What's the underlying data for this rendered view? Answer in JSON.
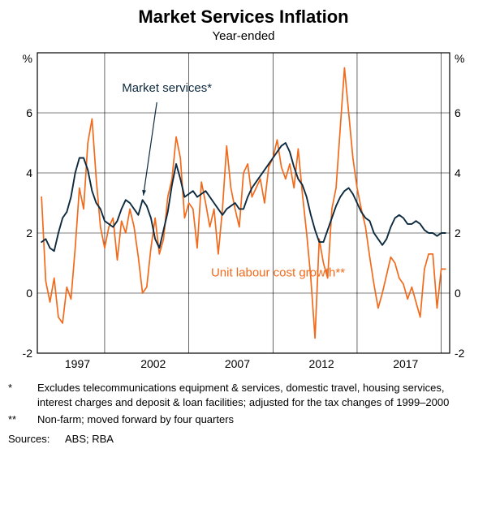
{
  "title": "Market Services Inflation",
  "subtitle": "Year-ended",
  "y_unit": "%",
  "ylim": [
    -2,
    8
  ],
  "ytick_step": 2,
  "x_start": 1993.0,
  "x_end": 2017.5,
  "xticks": [
    1997,
    2002,
    2007,
    2012,
    2017
  ],
  "grid_color": "#000000",
  "background_color": "#ffffff",
  "axis_label_fontsize": 14,
  "series": {
    "market_services": {
      "label": "Market services*",
      "color": "#0e2a3f",
      "line_width": 1.9,
      "annotation_xy": [
        2000.7,
        6.7
      ],
      "arrow_to": [
        1999.3,
        3.25
      ],
      "data": [
        [
          1993.25,
          1.7
        ],
        [
          1993.5,
          1.8
        ],
        [
          1993.75,
          1.5
        ],
        [
          1994.0,
          1.4
        ],
        [
          1994.25,
          2.0
        ],
        [
          1994.5,
          2.5
        ],
        [
          1994.75,
          2.7
        ],
        [
          1995.0,
          3.2
        ],
        [
          1995.25,
          4.0
        ],
        [
          1995.5,
          4.5
        ],
        [
          1995.75,
          4.5
        ],
        [
          1996.0,
          4.1
        ],
        [
          1996.25,
          3.4
        ],
        [
          1996.5,
          3.0
        ],
        [
          1996.75,
          2.8
        ],
        [
          1997.0,
          2.4
        ],
        [
          1997.25,
          2.3
        ],
        [
          1997.5,
          2.2
        ],
        [
          1997.75,
          2.4
        ],
        [
          1998.0,
          2.8
        ],
        [
          1998.25,
          3.1
        ],
        [
          1998.5,
          3.0
        ],
        [
          1998.75,
          2.8
        ],
        [
          1999.0,
          2.6
        ],
        [
          1999.25,
          3.1
        ],
        [
          1999.5,
          2.9
        ],
        [
          1999.75,
          2.5
        ],
        [
          2000.0,
          1.8
        ],
        [
          2000.25,
          1.5
        ],
        [
          2000.5,
          2.1
        ],
        [
          2000.75,
          2.7
        ],
        [
          2001.0,
          3.6
        ],
        [
          2001.25,
          4.3
        ],
        [
          2001.5,
          3.8
        ],
        [
          2001.75,
          3.2
        ],
        [
          2002.0,
          3.3
        ],
        [
          2002.25,
          3.4
        ],
        [
          2002.5,
          3.2
        ],
        [
          2002.75,
          3.3
        ],
        [
          2003.0,
          3.4
        ],
        [
          2003.25,
          3.2
        ],
        [
          2003.5,
          3.0
        ],
        [
          2003.75,
          2.8
        ],
        [
          2004.0,
          2.6
        ],
        [
          2004.25,
          2.8
        ],
        [
          2004.5,
          2.9
        ],
        [
          2004.75,
          3.0
        ],
        [
          2005.0,
          2.8
        ],
        [
          2005.25,
          2.8
        ],
        [
          2005.5,
          3.2
        ],
        [
          2005.75,
          3.5
        ],
        [
          2006.0,
          3.7
        ],
        [
          2006.25,
          3.9
        ],
        [
          2006.5,
          4.1
        ],
        [
          2006.75,
          4.3
        ],
        [
          2007.0,
          4.5
        ],
        [
          2007.25,
          4.7
        ],
        [
          2007.5,
          4.9
        ],
        [
          2007.75,
          5.0
        ],
        [
          2008.0,
          4.7
        ],
        [
          2008.25,
          4.2
        ],
        [
          2008.5,
          3.8
        ],
        [
          2008.75,
          3.6
        ],
        [
          2009.0,
          3.2
        ],
        [
          2009.25,
          2.6
        ],
        [
          2009.5,
          2.1
        ],
        [
          2009.75,
          1.7
        ],
        [
          2010.0,
          1.7
        ],
        [
          2010.25,
          2.1
        ],
        [
          2010.5,
          2.5
        ],
        [
          2010.75,
          2.9
        ],
        [
          2011.0,
          3.2
        ],
        [
          2011.25,
          3.4
        ],
        [
          2011.5,
          3.5
        ],
        [
          2011.75,
          3.3
        ],
        [
          2012.0,
          3.0
        ],
        [
          2012.25,
          2.7
        ],
        [
          2012.5,
          2.5
        ],
        [
          2012.75,
          2.4
        ],
        [
          2013.0,
          2.0
        ],
        [
          2013.25,
          1.8
        ],
        [
          2013.5,
          1.6
        ],
        [
          2013.75,
          1.8
        ],
        [
          2014.0,
          2.2
        ],
        [
          2014.25,
          2.5
        ],
        [
          2014.5,
          2.6
        ],
        [
          2014.75,
          2.5
        ],
        [
          2015.0,
          2.3
        ],
        [
          2015.25,
          2.3
        ],
        [
          2015.5,
          2.4
        ],
        [
          2015.75,
          2.3
        ],
        [
          2016.0,
          2.1
        ],
        [
          2016.25,
          2.0
        ],
        [
          2016.5,
          2.0
        ],
        [
          2016.75,
          1.9
        ],
        [
          2017.0,
          2.0
        ],
        [
          2017.25,
          2.0
        ]
      ]
    },
    "unit_labour": {
      "label": "Unit labour cost growth**",
      "color": "#f26a1b",
      "line_width": 1.7,
      "annotation_xy": [
        2007.3,
        0.55
      ],
      "data": [
        [
          1993.25,
          3.2
        ],
        [
          1993.5,
          0.4
        ],
        [
          1993.75,
          -0.3
        ],
        [
          1994.0,
          0.5
        ],
        [
          1994.25,
          -0.8
        ],
        [
          1994.5,
          -1.0
        ],
        [
          1994.75,
          0.2
        ],
        [
          1995.0,
          -0.2
        ],
        [
          1995.25,
          1.5
        ],
        [
          1995.5,
          3.5
        ],
        [
          1995.75,
          2.8
        ],
        [
          1996.0,
          5.0
        ],
        [
          1996.25,
          5.8
        ],
        [
          1996.5,
          3.8
        ],
        [
          1996.75,
          2.2
        ],
        [
          1997.0,
          1.5
        ],
        [
          1997.25,
          2.2
        ],
        [
          1997.5,
          2.5
        ],
        [
          1997.75,
          1.1
        ],
        [
          1998.0,
          2.4
        ],
        [
          1998.25,
          2.0
        ],
        [
          1998.5,
          2.8
        ],
        [
          1998.75,
          2.2
        ],
        [
          1999.0,
          1.2
        ],
        [
          1999.25,
          0.0
        ],
        [
          1999.5,
          0.2
        ],
        [
          1999.75,
          1.5
        ],
        [
          2000.0,
          2.5
        ],
        [
          2000.25,
          1.3
        ],
        [
          2000.5,
          1.8
        ],
        [
          2000.75,
          3.2
        ],
        [
          2001.0,
          3.8
        ],
        [
          2001.25,
          5.2
        ],
        [
          2001.5,
          4.5
        ],
        [
          2001.75,
          2.5
        ],
        [
          2002.0,
          3.0
        ],
        [
          2002.25,
          2.8
        ],
        [
          2002.5,
          1.5
        ],
        [
          2002.75,
          3.7
        ],
        [
          2003.0,
          3.0
        ],
        [
          2003.25,
          2.2
        ],
        [
          2003.5,
          2.8
        ],
        [
          2003.75,
          1.3
        ],
        [
          2004.0,
          2.8
        ],
        [
          2004.25,
          4.9
        ],
        [
          2004.5,
          3.5
        ],
        [
          2004.75,
          2.8
        ],
        [
          2005.0,
          2.2
        ],
        [
          2005.25,
          4.0
        ],
        [
          2005.5,
          4.3
        ],
        [
          2005.75,
          3.2
        ],
        [
          2006.0,
          3.5
        ],
        [
          2006.25,
          3.8
        ],
        [
          2006.5,
          3.0
        ],
        [
          2006.75,
          4.2
        ],
        [
          2007.0,
          4.5
        ],
        [
          2007.25,
          5.1
        ],
        [
          2007.5,
          4.2
        ],
        [
          2007.75,
          3.8
        ],
        [
          2008.0,
          4.3
        ],
        [
          2008.25,
          3.5
        ],
        [
          2008.5,
          4.8
        ],
        [
          2008.75,
          3.3
        ],
        [
          2009.0,
          2.0
        ],
        [
          2009.25,
          0.5
        ],
        [
          2009.5,
          -1.5
        ],
        [
          2009.75,
          1.8
        ],
        [
          2010.0,
          1.0
        ],
        [
          2010.25,
          0.5
        ],
        [
          2010.5,
          2.8
        ],
        [
          2010.75,
          3.5
        ],
        [
          2011.0,
          5.5
        ],
        [
          2011.25,
          7.5
        ],
        [
          2011.5,
          6.0
        ],
        [
          2011.75,
          4.5
        ],
        [
          2012.0,
          3.5
        ],
        [
          2012.25,
          2.8
        ],
        [
          2012.5,
          2.2
        ],
        [
          2012.75,
          1.2
        ],
        [
          2013.0,
          0.3
        ],
        [
          2013.25,
          -0.5
        ],
        [
          2013.5,
          0.0
        ],
        [
          2013.75,
          0.6
        ],
        [
          2014.0,
          1.2
        ],
        [
          2014.25,
          1.0
        ],
        [
          2014.5,
          0.5
        ],
        [
          2014.75,
          0.3
        ],
        [
          2015.0,
          -0.2
        ],
        [
          2015.25,
          0.2
        ],
        [
          2015.5,
          -0.3
        ],
        [
          2015.75,
          -0.8
        ],
        [
          2016.0,
          0.8
        ],
        [
          2016.25,
          1.3
        ],
        [
          2016.5,
          1.3
        ],
        [
          2016.75,
          -0.5
        ],
        [
          2017.0,
          0.8
        ],
        [
          2017.25,
          0.8
        ]
      ]
    }
  },
  "footnotes": [
    {
      "mark": "*",
      "text": "Excludes telecommunications equipment & services, domestic travel, housing services, interest charges and deposit & loan facilities; adjusted for the tax changes of 1999–2000"
    },
    {
      "mark": "**",
      "text": "Non-farm; moved forward by four quarters"
    }
  ],
  "sources_label": "Sources:",
  "sources": "ABS; RBA"
}
